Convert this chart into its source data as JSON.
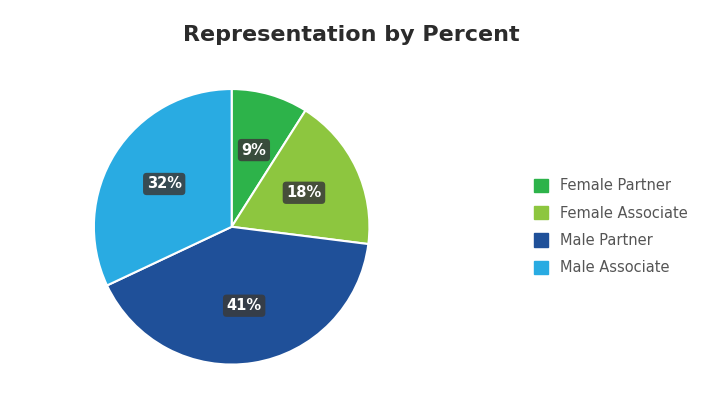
{
  "title": "Representation by Percent",
  "title_fontsize": 16,
  "title_fontweight": "bold",
  "labels": [
    "Female Partner",
    "Female Associate",
    "Male Partner",
    "Male Associate"
  ],
  "values": [
    9,
    18,
    41,
    32
  ],
  "colors": [
    "#2db34a",
    "#8dc63f",
    "#1f5099",
    "#29abe2"
  ],
  "pct_labels": [
    "9%",
    "18%",
    "41%",
    "32%"
  ],
  "startangle": 90,
  "legend_labels": [
    "Female Partner",
    "Female Associate",
    "Male Partner",
    "Male Associate"
  ],
  "legend_colors": [
    "#2db34a",
    "#8dc63f",
    "#1f5099",
    "#29abe2"
  ],
  "pct_label_color": "white",
  "pct_box_color": "#3a3a3a",
  "background_color": "#ffffff",
  "title_color": "#2b2b2b",
  "legend_fontsize": 10.5
}
